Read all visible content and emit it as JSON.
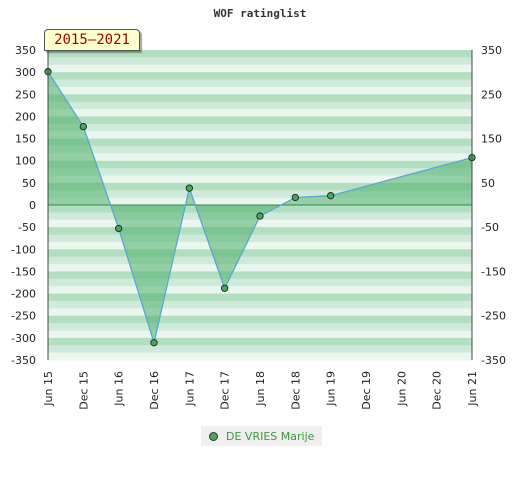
{
  "chart_data": {
    "type": "area",
    "title": "WOF ratinglist",
    "badge": "2015–2021",
    "x": [
      "Jun 15",
      "Dec 15",
      "Jun 16",
      "Dec 16",
      "Jun 17",
      "Dec 17",
      "Jun 18",
      "Dec 18",
      "Jun 19",
      "Dec 19",
      "Jun 20",
      "Dec 20",
      "Jun 21"
    ],
    "series": [
      {
        "name": "DE VRIES Marije",
        "points": [
          {
            "x": "Jun 15",
            "y": 301
          },
          {
            "x": "Dec 15",
            "y": 177
          },
          {
            "x": "Jun 16",
            "y": -53
          },
          {
            "x": "Dec 16",
            "y": -311
          },
          {
            "x": "Jun 17",
            "y": 38
          },
          {
            "x": "Dec 17",
            "y": -188
          },
          {
            "x": "Jun 18",
            "y": -25
          },
          {
            "x": "Dec 18",
            "y": 17
          },
          {
            "x": "Jun 19",
            "y": 21
          },
          {
            "x": "Jun 21",
            "y": 107
          }
        ]
      }
    ],
    "ylim": [
      -350,
      350
    ],
    "yticks": [
      350,
      300,
      250,
      200,
      150,
      100,
      50,
      0,
      -50,
      -100,
      -150,
      -200,
      -250,
      -300,
      -350
    ],
    "yticks_right": [
      350,
      250,
      150,
      50,
      -50,
      -150,
      -250,
      -350
    ],
    "legend_position": "bottom-center",
    "grid": "horizontal bands",
    "colors": {
      "line": "#5aa7d4",
      "fill": "#4caf6a",
      "marker": "#44a857",
      "band_dark": "#b3dfc1",
      "band_mid": "#cfeada",
      "band_light": "#eaf6ee",
      "legend_text": "#3a9a3a"
    }
  }
}
